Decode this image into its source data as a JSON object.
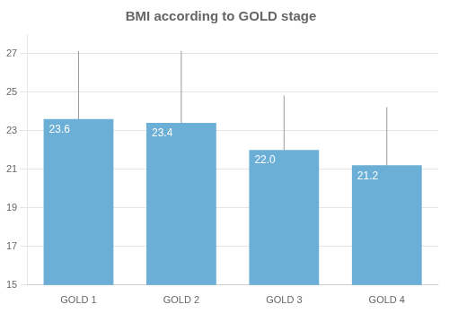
{
  "chart_data": {
    "type": "bar",
    "title": "BMI according to GOLD stage",
    "categories": [
      "GOLD 1",
      "GOLD 2",
      "GOLD 3",
      "GOLD 4"
    ],
    "values": [
      23.6,
      23.4,
      22.0,
      21.2
    ],
    "value_labels": [
      "23.6",
      "23.4",
      "22.0",
      "21.2"
    ],
    "error_upper": [
      3.5,
      3.7,
      2.8,
      3.0
    ],
    "color": "#6BAED6",
    "ylim": [
      15,
      28
    ],
    "yticks": [
      15,
      17,
      19,
      21,
      23,
      25,
      27
    ],
    "grid": true,
    "data_labels": true
  }
}
